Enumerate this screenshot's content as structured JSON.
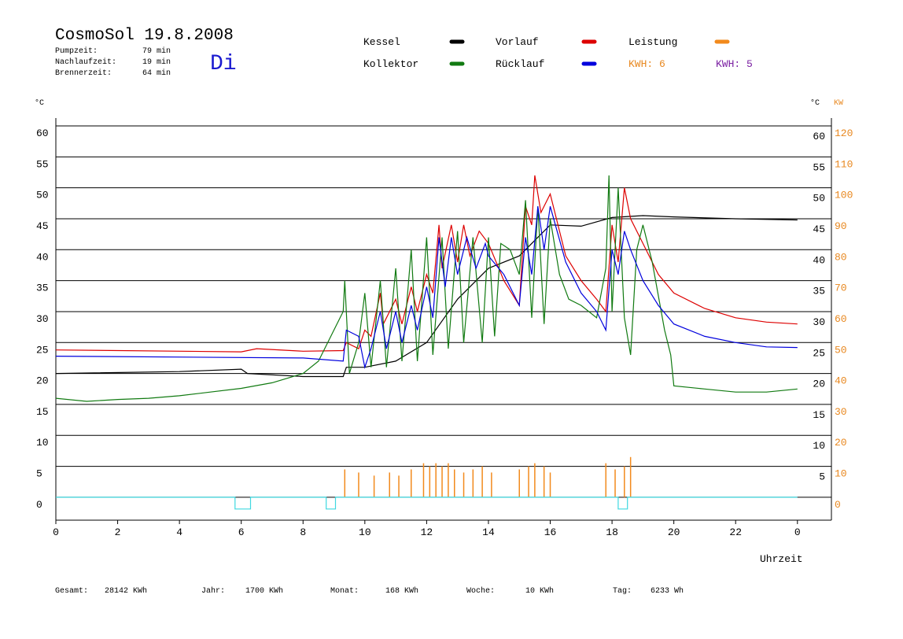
{
  "chart_data": {
    "type": "line",
    "title": "CosmoSol 19.8.2008",
    "weekday": "Di",
    "stats": [
      {
        "label": "Pumpzeit:",
        "value": "79 min"
      },
      {
        "label": "Nachlaufzeit:",
        "value": "19 min"
      },
      {
        "label": "Brennerzeit:",
        "value": "64 min"
      }
    ],
    "y_unit": "°C",
    "y2_unit_c": "°C",
    "y2_unit": "KW",
    "x_label": "Uhrzeit",
    "kwh_labels": [
      {
        "text": "KWH: 6",
        "color": "#e8871e"
      },
      {
        "text": "KWH: 5",
        "color": "#7a1fa2"
      }
    ],
    "totals": [
      {
        "label": "Gesamt:",
        "value": "28142 KWh"
      },
      {
        "label": "Jahr:",
        "value": "1700 KWh"
      },
      {
        "label": "Monat:",
        "value": "168 KWh"
      },
      {
        "label": "Woche:",
        "value": "10 KWh"
      },
      {
        "label": "Tag:",
        "value": "6233 Wh"
      }
    ],
    "xlim": [
      0,
      25.1
    ],
    "xticks": [
      0,
      2,
      4,
      6,
      8,
      10,
      12,
      14,
      16,
      18,
      20,
      22,
      {
        "value": 24,
        "label": "0"
      }
    ],
    "ylim": [
      -3.7,
      60
    ],
    "yticks": [
      0,
      5,
      10,
      15,
      20,
      25,
      30,
      35,
      40,
      45,
      50,
      55,
      60
    ],
    "yticks_right": [
      5,
      10,
      15,
      20,
      25,
      30,
      35,
      40,
      45,
      50,
      55,
      60
    ],
    "y2lim": [
      -7.4,
      120
    ],
    "y2ticks": [
      0,
      10,
      20,
      30,
      40,
      50,
      60,
      70,
      80,
      90,
      100,
      110,
      120
    ],
    "grid": true,
    "series": [
      {
        "name": "Kessel",
        "color": "#000000",
        "x": [
          0,
          4,
          6,
          6.2,
          8,
          9.3,
          9.4,
          10,
          11,
          12,
          13,
          14,
          15,
          16,
          17,
          18,
          19,
          20,
          22,
          24
        ],
        "values": [
          20,
          20.3,
          20.7,
          20,
          19.5,
          19.5,
          21,
          21,
          22,
          25,
          32,
          37,
          39,
          44,
          43.8,
          45.2,
          45.5,
          45.3,
          45,
          44.8
        ]
      },
      {
        "name": "Vorlauf",
        "color": "#dd0000",
        "x": [
          0,
          6,
          6.5,
          8,
          9.3,
          9.4,
          9.8,
          10,
          10.2,
          10.5,
          10.6,
          11,
          11.2,
          11.5,
          11.7,
          12,
          12.2,
          12.4,
          12.5,
          12.8,
          13,
          13.2,
          13.4,
          13.7,
          14,
          14.5,
          15,
          15.2,
          15.4,
          15.5,
          15.7,
          16,
          16.5,
          17,
          17.5,
          17.8,
          18,
          18.2,
          18.4,
          18.6,
          19,
          19.5,
          20,
          21,
          22,
          23,
          24
        ],
        "values": [
          23.8,
          23.5,
          24,
          23.6,
          23.7,
          25,
          24,
          27,
          26,
          33,
          28,
          32,
          28,
          34,
          30,
          36,
          33,
          44,
          37,
          44,
          38,
          44,
          39,
          43,
          41,
          35,
          31,
          47,
          44,
          52,
          46,
          49,
          39,
          35,
          32,
          30,
          44,
          38,
          50,
          45,
          41,
          36,
          33,
          30.5,
          29,
          28.3,
          28
        ]
      },
      {
        "name": "Leistung",
        "color": "#f28a1c",
        "axis": "y2",
        "style": "spike",
        "x": [
          9.35,
          9.8,
          10.3,
          10.8,
          11.1,
          11.5,
          11.9,
          12.1,
          12.3,
          12.5,
          12.7,
          12.9,
          13.2,
          13.5,
          13.8,
          14.1,
          15,
          15.3,
          15.5,
          15.8,
          16,
          17.8,
          18.1,
          18.4,
          18.6
        ],
        "values": [
          9,
          8,
          7,
          8,
          7,
          9,
          11,
          10,
          11,
          10,
          11,
          9,
          8,
          9,
          10,
          8,
          9,
          10,
          11,
          10,
          8,
          11,
          9,
          10,
          13
        ]
      },
      {
        "name": "Kollektor",
        "color": "#117a11",
        "x": [
          0,
          1,
          2,
          3,
          4,
          5,
          6,
          7,
          8,
          8.5,
          9,
          9.3,
          9.35,
          9.5,
          9.8,
          10,
          10.2,
          10.5,
          10.7,
          11,
          11.2,
          11.5,
          11.7,
          12,
          12.2,
          12.5,
          12.7,
          13,
          13.2,
          13.5,
          13.8,
          14,
          14.2,
          14.4,
          14.7,
          15,
          15.2,
          15.4,
          15.6,
          15.8,
          16,
          16.3,
          16.6,
          17,
          17.5,
          17.8,
          17.9,
          18,
          18.2,
          18.4,
          18.6,
          18.8,
          19,
          19.3,
          19.7,
          19.9,
          20,
          21,
          22,
          23,
          24
        ],
        "values": [
          16,
          15.5,
          15.8,
          16,
          16.4,
          17,
          17.6,
          18.5,
          20,
          22,
          27,
          30,
          35,
          20,
          25,
          33,
          21,
          35,
          21,
          37,
          22,
          40,
          22,
          42,
          23,
          42,
          24,
          43,
          25,
          42,
          25,
          42,
          26,
          41,
          40,
          36,
          48,
          29,
          47,
          28,
          45,
          36,
          32,
          31,
          29,
          37,
          52,
          30,
          50,
          29,
          23,
          40,
          44,
          38,
          27,
          23,
          18,
          17.5,
          17,
          17,
          17.5
        ]
      },
      {
        "name": "Rücklauf",
        "color": "#0000dd",
        "x": [
          0,
          8,
          9.3,
          9.4,
          9.8,
          10,
          10.2,
          10.5,
          10.7,
          11,
          11.2,
          11.5,
          11.7,
          12,
          12.2,
          12.4,
          12.6,
          12.8,
          13,
          13.3,
          13.6,
          13.9,
          14,
          14.5,
          15,
          15.2,
          15.4,
          15.6,
          15.8,
          16,
          16.5,
          17,
          17.5,
          17.8,
          18,
          18.2,
          18.4,
          18.6,
          19,
          19.5,
          20,
          21,
          22,
          23,
          24
        ],
        "values": [
          22.8,
          22.5,
          22,
          27,
          26,
          21,
          24,
          30,
          24,
          30,
          25,
          31,
          27,
          34,
          29,
          42,
          34,
          42,
          36,
          42,
          37,
          41,
          39,
          36,
          31,
          42,
          36,
          47,
          40,
          47,
          38,
          33,
          30,
          27,
          40,
          36,
          43,
          40,
          35,
          31,
          28,
          26,
          25,
          24.3,
          24.2
        ]
      },
      {
        "color": "#3fd8e0",
        "x": [
          0,
          5.8,
          5.8,
          6.3,
          6.3,
          8.75,
          8.75,
          9.05,
          9.05,
          18.2,
          18.2,
          18.5,
          18.5,
          24
        ],
        "values": [
          0,
          0,
          -1.9,
          -1.9,
          0,
          0,
          -1.9,
          -1.9,
          0,
          0,
          -1.9,
          -1.9,
          0,
          0
        ]
      }
    ]
  }
}
